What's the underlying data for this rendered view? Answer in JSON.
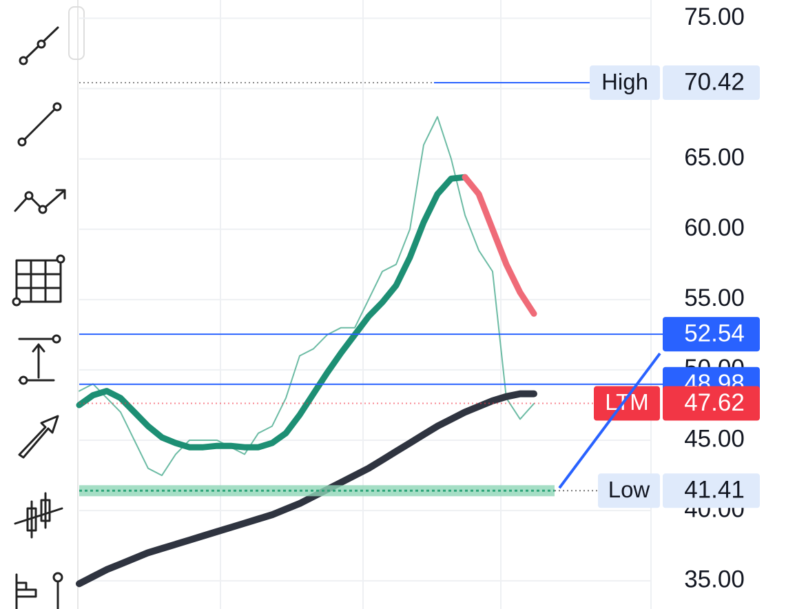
{
  "chart_data": {
    "type": "line",
    "categories": [
      null,
      null,
      null,
      null,
      null,
      null,
      null,
      null,
      null,
      null,
      null,
      null,
      null,
      null,
      null,
      null,
      null,
      null,
      null,
      null,
      null,
      null,
      null,
      null,
      null,
      null,
      null,
      null,
      null,
      null,
      null,
      null,
      null,
      null
    ],
    "ylim": [
      33,
      76.3
    ],
    "yticks": [
      {
        "value": 35,
        "label": "35.00"
      },
      {
        "value": 40,
        "label": "40.00"
      },
      {
        "value": 45,
        "label": "45.00"
      },
      {
        "value": 50,
        "label": "50.00"
      },
      {
        "value": 55,
        "label": "55.00"
      },
      {
        "value": 60,
        "label": "60.00"
      },
      {
        "value": 65,
        "label": "65.00"
      },
      {
        "value": 70,
        "label": "70.00"
      },
      {
        "value": 75,
        "label": "75.00"
      }
    ],
    "grid": true,
    "series": [
      {
        "color": "#5cb49a",
        "values": [
          48.5,
          49,
          48,
          47,
          45,
          43,
          42.5,
          44,
          45,
          45,
          45,
          44.5,
          44,
          45.5,
          46,
          48,
          51,
          51.5,
          52.5,
          53,
          53,
          55,
          57,
          57.5,
          60,
          66,
          68,
          65,
          61,
          58.5,
          57,
          48,
          46.5,
          47.6
        ]
      },
      {
        "color": "#1d8f74",
        "values": [
          47.5,
          48.2,
          48.5,
          48,
          47,
          46,
          45.2,
          44.8,
          44.5,
          44.5,
          44.6,
          44.6,
          44.5,
          44.5,
          44.8,
          45.5,
          46.8,
          48.3,
          49.8,
          51.2,
          52.5,
          53.8,
          54.8,
          56,
          58,
          60.5,
          62.5,
          63.6,
          63.7,
          null,
          null,
          null,
          null,
          null
        ]
      },
      {
        "color": "#ef6b78",
        "values": [
          null,
          null,
          null,
          null,
          null,
          null,
          null,
          null,
          null,
          null,
          null,
          null,
          null,
          null,
          null,
          null,
          null,
          null,
          null,
          null,
          null,
          null,
          null,
          null,
          null,
          null,
          null,
          null,
          63.7,
          62.5,
          60,
          57.5,
          55.5,
          54
        ]
      },
      {
        "color": "#2f3440",
        "values": [
          34.8,
          35.3,
          35.8,
          36.2,
          36.6,
          37,
          37.3,
          37.6,
          37.9,
          38.2,
          38.5,
          38.8,
          39.1,
          39.4,
          39.7,
          40.1,
          40.5,
          41,
          41.5,
          42,
          42.5,
          43,
          43.6,
          44.2,
          44.8,
          45.4,
          46,
          46.5,
          47,
          47.4,
          47.8,
          48.1,
          48.3,
          48.3
        ]
      }
    ],
    "levels": [
      {
        "label": "High",
        "value": 70.42
      },
      {
        "value": 52.54
      },
      {
        "value": 48.98
      },
      {
        "label": "LTM",
        "value": 47.62
      },
      {
        "label": "Low",
        "value": 41.41
      }
    ]
  }
}
